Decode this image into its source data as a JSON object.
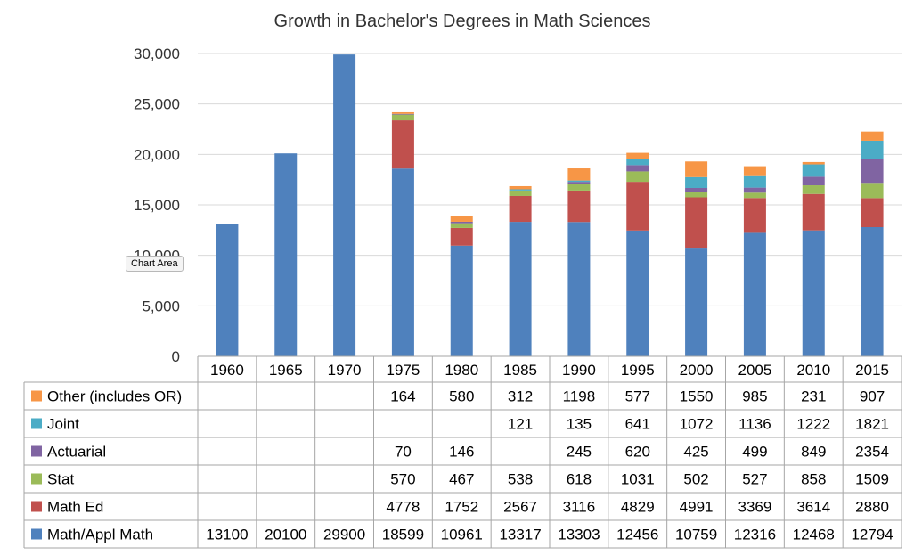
{
  "chart_data": {
    "type": "bar",
    "stacked": true,
    "title": "Growth in Bachelor's Degrees in Math Sciences",
    "xlabel": "",
    "ylabel": "",
    "ylim": [
      0,
      30000
    ],
    "yticks": [
      "0",
      "5,000",
      "10,000",
      "15,000",
      "20,000",
      "25,000",
      "30,000"
    ],
    "grid": true,
    "legend": "data-table",
    "categories": [
      "1960",
      "1965",
      "1970",
      "1975",
      "1980",
      "1985",
      "1990",
      "1995",
      "2000",
      "2005",
      "2010",
      "2015"
    ],
    "series": [
      {
        "name": "Math/Appl Math",
        "color": "#4f81bd",
        "values": [
          13100,
          20100,
          29900,
          18599,
          10961,
          13317,
          13303,
          12456,
          10759,
          12316,
          12468,
          12794
        ]
      },
      {
        "name": "Math Ed",
        "color": "#c0504d",
        "values": [
          null,
          null,
          null,
          4778,
          1752,
          2567,
          3116,
          4829,
          4991,
          3369,
          3614,
          2880
        ]
      },
      {
        "name": "Stat",
        "color": "#9bbb59",
        "values": [
          null,
          null,
          null,
          570,
          467,
          538,
          618,
          1031,
          502,
          527,
          858,
          1509
        ]
      },
      {
        "name": "Actuarial",
        "color": "#8064a2",
        "values": [
          null,
          null,
          null,
          70,
          146,
          null,
          245,
          620,
          425,
          499,
          849,
          2354
        ]
      },
      {
        "name": "Joint",
        "color": "#4bacc6",
        "values": [
          null,
          null,
          null,
          null,
          null,
          121,
          135,
          641,
          1072,
          1136,
          1222,
          1821
        ]
      },
      {
        "name": "Other (includes OR)",
        "color": "#f79646",
        "values": [
          null,
          null,
          null,
          164,
          580,
          312,
          1198,
          577,
          1550,
          985,
          231,
          907
        ]
      }
    ]
  },
  "ui": {
    "tooltip": "Chart Area"
  }
}
